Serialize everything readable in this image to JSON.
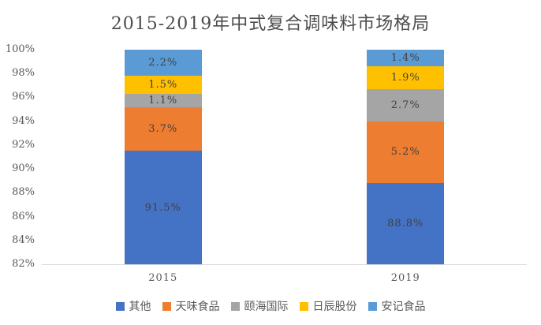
{
  "title": "2015-2019年中式复合调味料市场格局",
  "chart_data": {
    "type": "bar",
    "stacked": true,
    "title": "2015-2019年中式复合调味料市场格局",
    "categories": [
      "2015",
      "2019"
    ],
    "series": [
      {
        "id": "other",
        "name": "其他",
        "color": "#4472c4",
        "values": [
          91.5,
          88.8
        ]
      },
      {
        "id": "teway-food",
        "name": "天味食品",
        "color": "#ed7d31",
        "values": [
          3.7,
          5.2
        ]
      },
      {
        "id": "yihai-international",
        "name": "颐海国际",
        "color": "#a5a5a5",
        "values": [
          1.1,
          2.7
        ]
      },
      {
        "id": "richen-shares",
        "name": "日辰股份",
        "color": "#ffc000",
        "values": [
          1.5,
          1.9
        ]
      },
      {
        "id": "anji-food",
        "name": "安记食品",
        "color": "#5b9bd5",
        "values": [
          2.2,
          1.4
        ]
      }
    ],
    "data_labels": {
      "other": [
        "91.5%",
        "88.8%"
      ],
      "teway-food": [
        "3.7%",
        "5.2%"
      ],
      "yihai-international": [
        "1.1%",
        "2.7%"
      ],
      "richen-shares": [
        "1.5%",
        "1.9%"
      ],
      "anji-food": [
        "2.2%",
        "1.4%"
      ]
    },
    "y_axis": {
      "min": 82,
      "max": 100,
      "tick_step": 2,
      "tick_labels": [
        "100%",
        "98%",
        "96%",
        "94%",
        "92%",
        "90%",
        "88%",
        "86%",
        "84%",
        "82%"
      ]
    },
    "x_axis": {
      "labels": [
        "2015",
        "2019"
      ]
    },
    "legend": [
      "其他",
      "天味食品",
      "颐海国际",
      "日辰股份",
      "安记食品"
    ],
    "legend_position": "bottom",
    "grid": false,
    "colors": {
      "axis_line": "#d9d9d9",
      "tick_text": "#595959",
      "data_label_text": "#404040",
      "title_text": "#4d4d4d"
    }
  }
}
